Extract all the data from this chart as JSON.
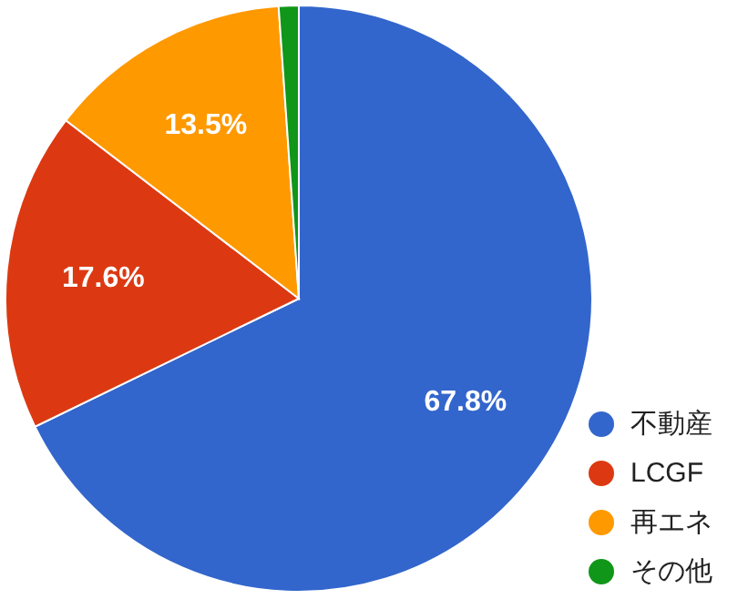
{
  "chart_data": {
    "type": "pie",
    "categories": [
      "不動産",
      "LCGF",
      "再エネ",
      "その他"
    ],
    "values": [
      67.8,
      17.6,
      13.5,
      1.1
    ],
    "colors": [
      "#3366cc",
      "#dc3912",
      "#ff9900",
      "#109618"
    ],
    "value_labels": [
      "67.8%",
      "17.6%",
      "13.5%",
      null
    ],
    "legend": "bottom right"
  }
}
